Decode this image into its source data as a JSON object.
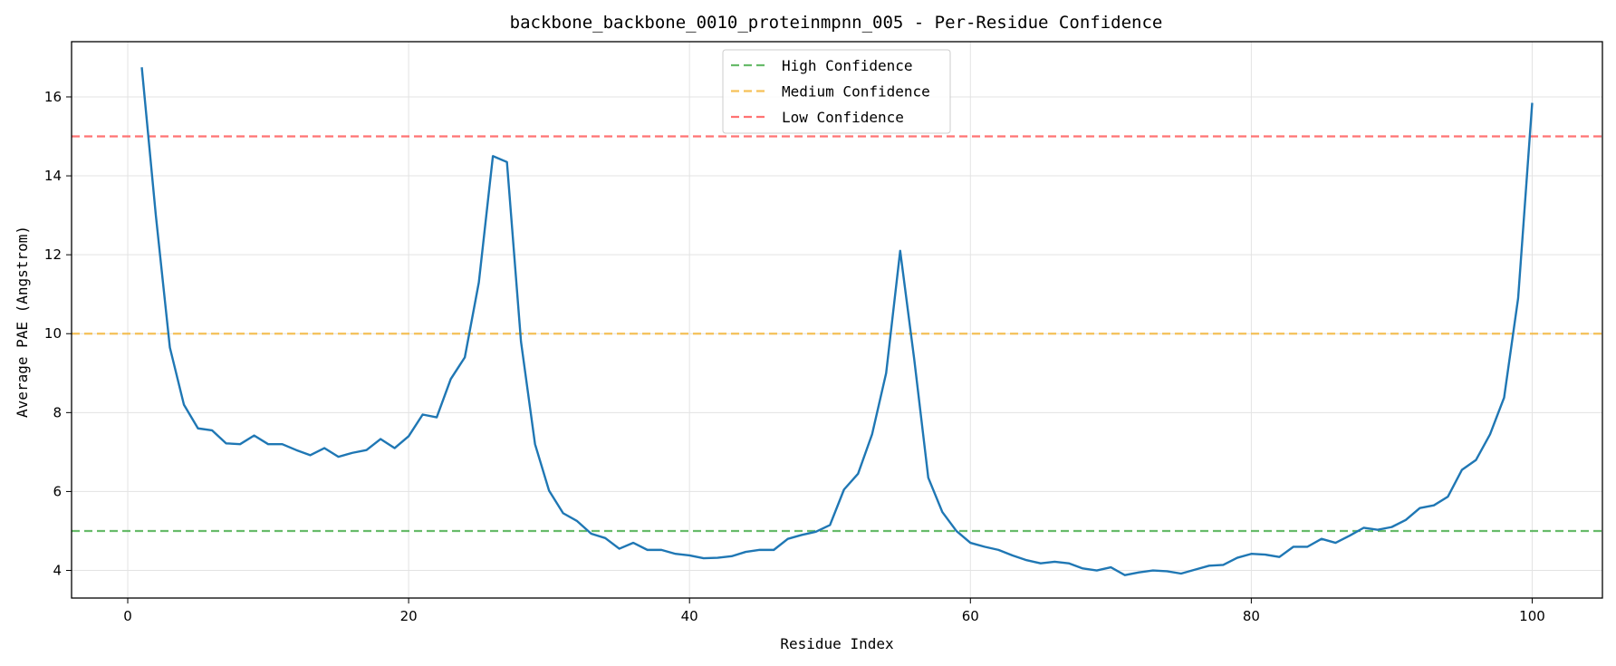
{
  "chart_data": {
    "type": "line",
    "title": "backbone_backbone_0010_proteinmpnn_005 - Per-Residue Confidence",
    "xlabel": "Residue Index",
    "ylabel": "Average PAE (Angstrom)",
    "xlim": [
      -4,
      105
    ],
    "ylim": [
      3.3,
      17.4
    ],
    "xticks": [
      0,
      20,
      40,
      60,
      80,
      100
    ],
    "yticks": [
      4,
      6,
      8,
      10,
      12,
      14,
      16
    ],
    "grid": true,
    "legend_position": "top-center",
    "series": [
      {
        "color": "#1f77b4",
        "x": [
          1,
          2,
          3,
          4,
          5,
          6,
          7,
          8,
          9,
          10,
          11,
          12,
          13,
          14,
          15,
          16,
          17,
          18,
          19,
          20,
          21,
          22,
          23,
          24,
          25,
          26,
          27,
          28,
          29,
          30,
          31,
          32,
          33,
          34,
          35,
          36,
          37,
          38,
          39,
          40,
          41,
          42,
          43,
          44,
          45,
          46,
          47,
          48,
          49,
          50,
          51,
          52,
          53,
          54,
          55,
          56,
          57,
          58,
          59,
          60,
          61,
          62,
          63,
          64,
          65,
          66,
          67,
          68,
          69,
          70,
          71,
          72,
          73,
          74,
          75,
          76,
          77,
          78,
          79,
          80,
          81,
          82,
          83,
          84,
          85,
          86,
          87,
          88,
          89,
          90,
          91,
          92,
          93,
          94,
          95,
          96,
          97,
          98,
          99,
          100
        ],
        "values": [
          16.75,
          13.0,
          9.65,
          8.2,
          7.6,
          7.55,
          7.22,
          7.2,
          7.42,
          7.2,
          7.2,
          7.05,
          6.92,
          7.1,
          6.88,
          6.98,
          7.05,
          7.33,
          7.1,
          7.4,
          7.95,
          7.88,
          8.85,
          9.4,
          11.3,
          14.5,
          14.35,
          9.8,
          7.2,
          6.02,
          5.45,
          5.25,
          4.93,
          4.82,
          4.55,
          4.7,
          4.52,
          4.52,
          4.42,
          4.38,
          4.31,
          4.32,
          4.36,
          4.47,
          4.52,
          4.52,
          4.8,
          4.9,
          4.98,
          5.15,
          6.05,
          6.45,
          7.45,
          9.0,
          12.1,
          9.35,
          6.35,
          5.48,
          5.0,
          4.7,
          4.6,
          4.52,
          4.38,
          4.26,
          4.18,
          4.22,
          4.18,
          4.05,
          4.0,
          4.08,
          3.88,
          3.95,
          4.0,
          3.98,
          3.92,
          4.02,
          4.12,
          4.14,
          4.32,
          4.42,
          4.4,
          4.34,
          4.6,
          4.6,
          4.8,
          4.7,
          4.88,
          5.08,
          5.03,
          5.1,
          5.28,
          5.58,
          5.65,
          5.87,
          6.55,
          6.8,
          7.45,
          8.38,
          10.9,
          15.85
        ]
      }
    ],
    "reference_lines": [
      {
        "name": "High Confidence",
        "y": 5,
        "color": "#4caf50"
      },
      {
        "name": "Medium Confidence",
        "y": 10,
        "color": "#f5b73b"
      },
      {
        "name": "Low Confidence",
        "y": 15,
        "color": "#ff5a5a"
      }
    ]
  }
}
